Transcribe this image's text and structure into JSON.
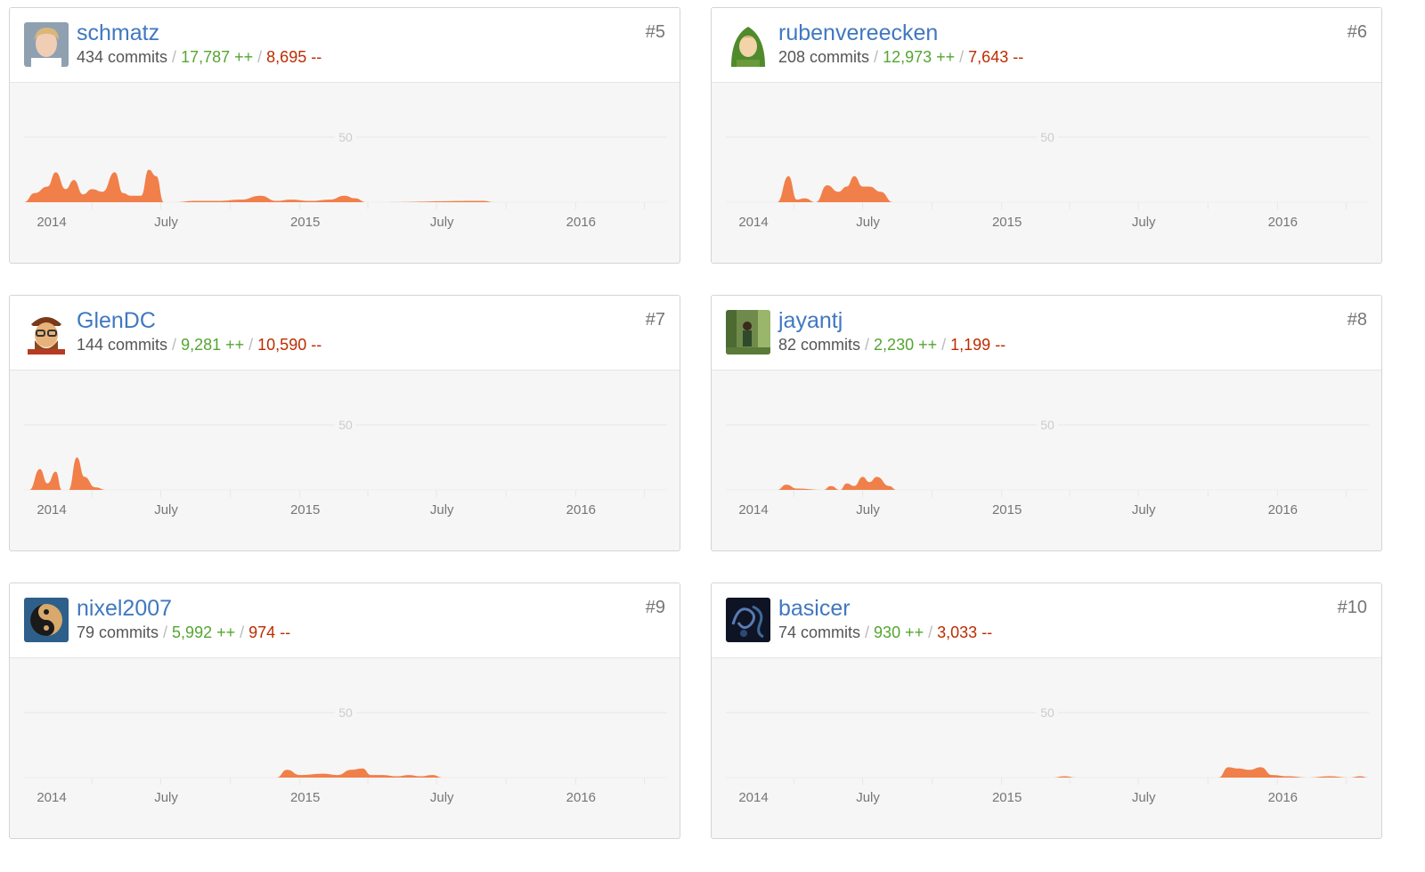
{
  "colors": {
    "area": "#f17f49",
    "link": "#4078c0",
    "additions": "#55a532",
    "deletions": "#bd2c00"
  },
  "common": {
    "commits_suffix": " commits",
    "sep": " / ",
    "add_suffix": " ++",
    "del_suffix": " --"
  },
  "contributors": [
    {
      "name": "schmatz",
      "rank": "#5",
      "commits": "434",
      "additions": "17,787",
      "deletions": "8,695",
      "avatar_icon": "avatar-photo-blond-man"
    },
    {
      "name": "rubenvereecken",
      "rank": "#6",
      "commits": "208",
      "additions": "12,973",
      "deletions": "7,643",
      "avatar_icon": "avatar-green-hood-archer"
    },
    {
      "name": "GlenDC",
      "rank": "#7",
      "commits": "144",
      "additions": "9,281",
      "deletions": "10,590",
      "avatar_icon": "avatar-pirate-cartoon"
    },
    {
      "name": "jayantj",
      "rank": "#8",
      "commits": "82",
      "additions": "2,230",
      "deletions": "1,199",
      "avatar_icon": "avatar-forest-photo"
    },
    {
      "name": "nixel2007",
      "rank": "#9",
      "commits": "79",
      "additions": "5,992",
      "deletions": "974",
      "avatar_icon": "avatar-yin-yang"
    },
    {
      "name": "basicer",
      "rank": "#10",
      "commits": "74",
      "additions": "930",
      "deletions": "3,033",
      "avatar_icon": "avatar-dark-swirl"
    }
  ],
  "chart_data": [
    {
      "type": "area",
      "ylim": [
        0,
        50
      ],
      "yticks": [
        50
      ],
      "xticks": [
        "2014",
        "July",
        "2015",
        "July",
        "2016"
      ],
      "series": [
        {
          "x": [
            "2014-01-01",
            "2014-01-15",
            "2014-02-01",
            "2014-02-12",
            "2014-02-25",
            "2014-03-08",
            "2014-03-20",
            "2014-04-01",
            "2014-04-15",
            "2014-05-01",
            "2014-05-12",
            "2014-05-22",
            "2014-06-05",
            "2014-06-15",
            "2014-06-25",
            "2014-07-05",
            "2014-07-20",
            "2014-08-15",
            "2014-09-15",
            "2014-10-15",
            "2014-11-10",
            "2014-12-01",
            "2014-12-20",
            "2015-01-15",
            "2015-02-10",
            "2015-03-01",
            "2015-03-15",
            "2015-03-30",
            "2015-09-01",
            "2015-09-15"
          ],
          "y": [
            0,
            7,
            12,
            23,
            10,
            17,
            6,
            10,
            8,
            23,
            7,
            5,
            5,
            25,
            20,
            0,
            0,
            1,
            1,
            2,
            5,
            1,
            2,
            1,
            2,
            5,
            3,
            0,
            1,
            0
          ]
        }
      ]
    },
    {
      "type": "area",
      "ylim": [
        0,
        50
      ],
      "yticks": [
        50
      ],
      "xticks": [
        "2014",
        "July",
        "2015",
        "July",
        "2016"
      ],
      "series": [
        {
          "x": [
            "2014-01-01",
            "2014-03-10",
            "2014-03-25",
            "2014-04-05",
            "2014-04-15",
            "2014-04-30",
            "2014-05-15",
            "2014-05-30",
            "2014-06-10",
            "2014-06-20",
            "2014-07-01",
            "2014-07-10",
            "2014-07-25",
            "2014-08-10",
            "2016-04-30"
          ],
          "y": [
            0,
            0,
            20,
            2,
            3,
            0,
            13,
            8,
            12,
            20,
            12,
            12,
            8,
            0,
            0
          ]
        }
      ]
    },
    {
      "type": "area",
      "ylim": [
        0,
        50
      ],
      "yticks": [
        50
      ],
      "xticks": [
        "2014",
        "July",
        "2015",
        "July",
        "2016"
      ],
      "series": [
        {
          "x": [
            "2014-01-01",
            "2014-01-08",
            "2014-01-22",
            "2014-02-01",
            "2014-02-12",
            "2014-02-20",
            "2014-03-01",
            "2014-03-12",
            "2014-03-22",
            "2014-04-05",
            "2014-04-20",
            "2016-04-30"
          ],
          "y": [
            0,
            0,
            16,
            5,
            14,
            0,
            0,
            25,
            10,
            2,
            0,
            0
          ]
        }
      ]
    },
    {
      "type": "area",
      "ylim": [
        0,
        50
      ],
      "yticks": [
        50
      ],
      "xticks": [
        "2014",
        "July",
        "2015",
        "July",
        "2016"
      ],
      "series": [
        {
          "x": [
            "2014-01-01",
            "2014-03-10",
            "2014-03-22",
            "2014-04-05",
            "2014-05-10",
            "2014-05-20",
            "2014-06-01",
            "2014-06-10",
            "2014-06-20",
            "2014-07-01",
            "2014-07-10",
            "2014-07-20",
            "2014-08-05",
            "2014-08-15",
            "2016-04-30"
          ],
          "y": [
            0,
            0,
            4,
            1,
            0,
            3,
            0,
            5,
            3,
            10,
            6,
            10,
            3,
            0,
            0
          ]
        }
      ]
    },
    {
      "type": "area",
      "ylim": [
        0,
        50
      ],
      "yticks": [
        50
      ],
      "xticks": [
        "2014",
        "July",
        "2015",
        "July",
        "2016"
      ],
      "series": [
        {
          "x": [
            "2014-01-01",
            "2014-12-01",
            "2014-12-15",
            "2015-01-01",
            "2015-02-01",
            "2015-02-20",
            "2015-03-10",
            "2015-03-25",
            "2015-04-05",
            "2015-04-20",
            "2015-05-10",
            "2015-05-25",
            "2015-06-10",
            "2015-06-25",
            "2015-07-10",
            "2016-04-30"
          ],
          "y": [
            0,
            0,
            6,
            2,
            3,
            2,
            6,
            7,
            2,
            2,
            1,
            2,
            1,
            2,
            0,
            0
          ]
        }
      ]
    },
    {
      "type": "area",
      "ylim": [
        0,
        50
      ],
      "yticks": [
        50
      ],
      "xticks": [
        "2014",
        "July",
        "2015",
        "July",
        "2016"
      ],
      "series": [
        {
          "x": [
            "2014-01-01",
            "2015-03-10",
            "2015-03-25",
            "2015-04-10",
            "2015-10-15",
            "2015-10-28",
            "2015-11-10",
            "2015-11-25",
            "2015-12-10",
            "2015-12-25",
            "2016-01-15",
            "2016-02-10",
            "2016-03-10",
            "2016-04-05",
            "2016-04-20",
            "2016-04-30"
          ],
          "y": [
            0,
            0,
            1,
            0,
            0,
            8,
            7,
            6,
            8,
            2,
            1,
            0,
            1,
            0,
            1,
            0
          ]
        }
      ]
    }
  ]
}
